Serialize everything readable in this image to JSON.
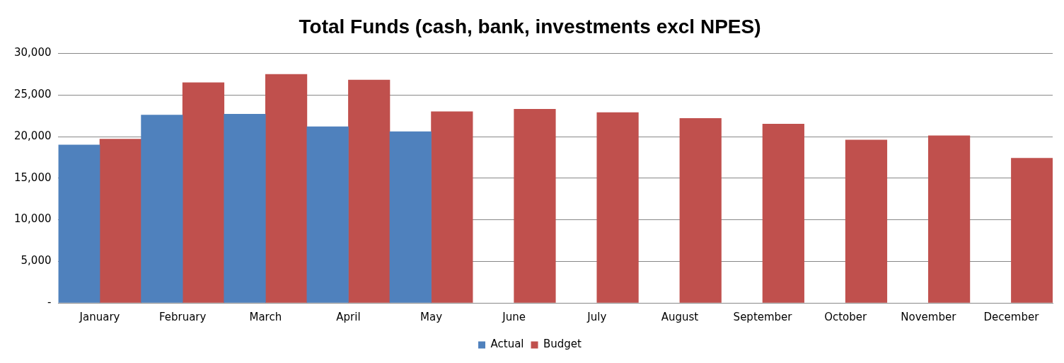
{
  "chart_data": {
    "type": "bar",
    "title": "Total Funds (cash, bank, investments excl NPES)",
    "categories": [
      "January",
      "February",
      "March",
      "April",
      "May",
      "June",
      "July",
      "August",
      "September",
      "October",
      "November",
      "December"
    ],
    "series": [
      {
        "name": "Actual",
        "color": "#4f81bd",
        "values": [
          19000,
          22600,
          22700,
          21200,
          20600,
          null,
          null,
          null,
          null,
          null,
          null,
          null
        ]
      },
      {
        "name": "Budget",
        "color": "#c0504d",
        "values": [
          19700,
          26500,
          27500,
          26800,
          23000,
          23300,
          22900,
          22200,
          21500,
          19600,
          20100,
          17400
        ]
      }
    ],
    "ylim": [
      0,
      30000
    ],
    "yticks": [
      {
        "value": 0,
        "label": "-"
      },
      {
        "value": 5000,
        "label": "5,000"
      },
      {
        "value": 10000,
        "label": "10,000"
      },
      {
        "value": 15000,
        "label": "15,000"
      },
      {
        "value": 20000,
        "label": "20,000"
      },
      {
        "value": 25000,
        "label": "25,000"
      },
      {
        "value": 30000,
        "label": "30,000"
      }
    ],
    "grid": "y",
    "legend": "bottom"
  }
}
